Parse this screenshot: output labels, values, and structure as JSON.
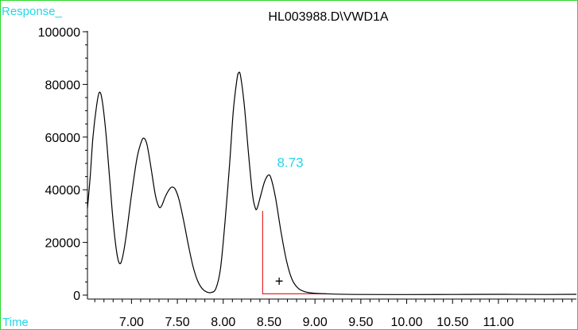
{
  "chart_data": {
    "type": "line",
    "title": "HL003988.D\\VWD1A",
    "ylabel": "Response_",
    "xlabel": "Time",
    "xlim": [
      6.52,
      11.85
    ],
    "ylim": [
      0,
      100000
    ],
    "y_ticks": [
      0,
      20000,
      40000,
      60000,
      80000,
      100000
    ],
    "y_tick_labels": [
      "0",
      "20000",
      "40000",
      "60000",
      "80000",
      "100000"
    ],
    "x_ticks": [
      7.0,
      7.5,
      8.0,
      8.5,
      9.0,
      9.5,
      10.0,
      10.5,
      11.0
    ],
    "x_tick_labels": [
      "7.00",
      "7.50",
      "8.00",
      "8.50",
      "9.00",
      "9.50",
      "10.00",
      "10.50",
      "11.00"
    ],
    "x_minor_step": 0.1,
    "y_minor_step": 5000,
    "series": [
      {
        "color": "#000000",
        "points": [
          [
            6.52,
            33000
          ],
          [
            6.55,
            45000
          ],
          [
            6.58,
            60000
          ],
          [
            6.62,
            72000
          ],
          [
            6.65,
            77000
          ],
          [
            6.68,
            74000
          ],
          [
            6.72,
            62000
          ],
          [
            6.76,
            45000
          ],
          [
            6.8,
            28000
          ],
          [
            6.84,
            16000
          ],
          [
            6.87,
            12000
          ],
          [
            6.9,
            14000
          ],
          [
            6.94,
            22000
          ],
          [
            7.0,
            38000
          ],
          [
            7.06,
            52000
          ],
          [
            7.11,
            58500
          ],
          [
            7.14,
            59500
          ],
          [
            7.17,
            57000
          ],
          [
            7.21,
            49000
          ],
          [
            7.26,
            38000
          ],
          [
            7.3,
            33500
          ],
          [
            7.33,
            34000
          ],
          [
            7.37,
            37500
          ],
          [
            7.42,
            40500
          ],
          [
            7.45,
            41000
          ],
          [
            7.48,
            40000
          ],
          [
            7.52,
            36000
          ],
          [
            7.57,
            28000
          ],
          [
            7.62,
            19000
          ],
          [
            7.67,
            11000
          ],
          [
            7.72,
            5500
          ],
          [
            7.77,
            2500
          ],
          [
            7.82,
            1200
          ],
          [
            7.87,
            1000
          ],
          [
            7.92,
            2500
          ],
          [
            7.97,
            10000
          ],
          [
            8.02,
            28000
          ],
          [
            8.07,
            50000
          ],
          [
            8.11,
            70000
          ],
          [
            8.15,
            82000
          ],
          [
            8.17,
            84500
          ],
          [
            8.19,
            83000
          ],
          [
            8.23,
            72000
          ],
          [
            8.28,
            52000
          ],
          [
            8.32,
            38000
          ],
          [
            8.35,
            33000
          ],
          [
            8.37,
            33000
          ],
          [
            8.41,
            38000
          ],
          [
            8.45,
            43000
          ],
          [
            8.49,
            45500
          ],
          [
            8.52,
            44500
          ],
          [
            8.57,
            37000
          ],
          [
            8.63,
            24000
          ],
          [
            8.69,
            13000
          ],
          [
            8.75,
            6000
          ],
          [
            8.82,
            2500
          ],
          [
            8.9,
            1200
          ],
          [
            9.0,
            700
          ],
          [
            9.2,
            400
          ],
          [
            9.5,
            250
          ],
          [
            10.0,
            200
          ],
          [
            10.5,
            250
          ],
          [
            11.0,
            300
          ],
          [
            11.5,
            250
          ],
          [
            11.85,
            300
          ]
        ]
      }
    ],
    "annotations": [
      {
        "text": "8.73",
        "x": 8.73,
        "y": 45000,
        "color": "#25d6e8"
      },
      {
        "text": "+",
        "x": 8.61,
        "y": 4000,
        "color": "#000000"
      }
    ],
    "integration_baseline": {
      "color": "#e8262b",
      "points": [
        [
          8.43,
          32000
        ],
        [
          8.43,
          500
        ],
        [
          9.13,
          500
        ]
      ]
    }
  },
  "colors": {
    "frame": "#2bd92b",
    "axis_label": "#25d6e8",
    "axis": "#000000"
  }
}
